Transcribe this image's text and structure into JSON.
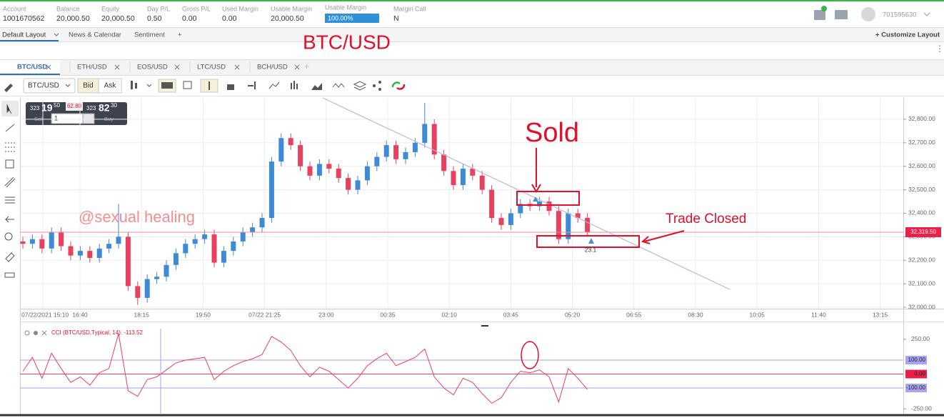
{
  "account_bar": {
    "fields": [
      {
        "label": "Account",
        "value": "1001670562"
      },
      {
        "label": "Balance",
        "value": "20,000.50"
      },
      {
        "label": "Equity",
        "value": "20,000.50"
      },
      {
        "label": "Day P/L",
        "value": "0.50"
      },
      {
        "label": "Gross P/L",
        "value": "0.00"
      },
      {
        "label": "Used Margin",
        "value": "0.00"
      },
      {
        "label": "Usable Margin",
        "value": "20,000.50"
      }
    ],
    "margin_bar": {
      "label": "Usable Margin",
      "value": "100.00%"
    },
    "margin_call": {
      "label": "Margin Call",
      "value": "N"
    },
    "user_id": "701595630"
  },
  "layout_tabs": {
    "tabs": [
      "Default Layout",
      "News & Calendar",
      "Sentiment",
      "+"
    ],
    "customize": "+ Customize Layout"
  },
  "overlay_title": "BTC/USD",
  "symbol_tabs": [
    "BTC/USD",
    "ETH/USD",
    "EOS/USD",
    "LTC/USD",
    "BCH/USD"
  ],
  "toolbar": {
    "symbol": "BTC/USD",
    "bid": "Bid",
    "ask": "Ask"
  },
  "order_ticket": {
    "sell_big": "323",
    "sell_pips": "19",
    "sell_frac": "50",
    "spread": "62.80",
    "buy_big": "323",
    "buy_pips": "82",
    "buy_frac": "30",
    "amount": "1",
    "sell": "Sell",
    "buy": "Buy"
  },
  "chart_data": [
    {
      "type": "candlestick",
      "xtick_labels": [
        "07/22/2021 15:10",
        "16:40",
        "18:15",
        "19:50",
        "07/22 21:25",
        "23:00",
        "00:35",
        "02:10",
        "03:45",
        "05:20",
        "06:55",
        "08:30",
        "10:05",
        "11:40",
        "13:15"
      ],
      "open": [
        32280,
        32270,
        32290,
        32250,
        32320,
        32260,
        32220,
        32240,
        32210,
        32250,
        32270,
        32300,
        32090,
        32040,
        32120,
        32130,
        32180,
        32230,
        32270,
        32290,
        32310,
        32190,
        32240,
        32280,
        32320,
        32340,
        32380,
        32620,
        32720,
        32690,
        32600,
        32560,
        32610,
        32590,
        32550,
        32500,
        32540,
        32600,
        32640,
        32690,
        32630,
        32660,
        32700,
        32780,
        32650,
        32580,
        32520,
        32590,
        32560,
        32500,
        32380,
        32350,
        32400,
        32440,
        32430,
        32450,
        32410,
        32290,
        32400,
        32380
      ],
      "high": [
        32300,
        32310,
        32310,
        32340,
        32340,
        32280,
        32260,
        32260,
        32270,
        32290,
        32440,
        32320,
        32110,
        32140,
        32150,
        32200,
        32250,
        32290,
        32310,
        32330,
        32330,
        32260,
        32300,
        32340,
        32360,
        32400,
        32640,
        32740,
        32740,
        32710,
        32620,
        32630,
        32630,
        32610,
        32570,
        32560,
        32620,
        32660,
        32710,
        32710,
        32680,
        32720,
        32870,
        32800,
        32670,
        32600,
        32610,
        32610,
        32580,
        32520,
        32400,
        32420,
        32460,
        32460,
        32470,
        32470,
        32430,
        32420,
        32420,
        32400
      ],
      "low": [
        32250,
        32250,
        32230,
        32230,
        32240,
        32200,
        32200,
        32190,
        32190,
        32230,
        32250,
        32070,
        32010,
        32020,
        32100,
        32110,
        32160,
        32210,
        32250,
        32270,
        32170,
        32170,
        32220,
        32260,
        32300,
        32320,
        32360,
        32600,
        32670,
        32580,
        32540,
        32540,
        32570,
        32530,
        32480,
        32480,
        32520,
        32580,
        32620,
        32610,
        32610,
        32640,
        32680,
        32630,
        32560,
        32500,
        32500,
        32540,
        32480,
        32360,
        32330,
        32330,
        32380,
        32410,
        32410,
        32390,
        32270,
        32270,
        32360,
        32300
      ],
      "close": [
        32270,
        32290,
        32250,
        32320,
        32260,
        32220,
        32240,
        32210,
        32250,
        32270,
        32300,
        32090,
        32040,
        32120,
        32130,
        32180,
        32230,
        32270,
        32290,
        32310,
        32190,
        32240,
        32280,
        32320,
        32340,
        32380,
        32620,
        32720,
        32690,
        32600,
        32560,
        32610,
        32590,
        32550,
        32500,
        32540,
        32600,
        32640,
        32690,
        32630,
        32660,
        32700,
        32780,
        32650,
        32580,
        32520,
        32590,
        32560,
        32500,
        32380,
        32350,
        32400,
        32440,
        32430,
        32450,
        32410,
        32290,
        32400,
        32380,
        32320
      ],
      "up_color": "#3d8ad6",
      "down_color": "#e8405f",
      "ylim": [
        31994,
        32891
      ],
      "yticks": [
        {
          "value": 32000,
          "label": "32,000.00"
        },
        {
          "value": 32100,
          "label": "32,100.00"
        },
        {
          "value": 32200,
          "label": "32,200.00"
        },
        {
          "value": 32300,
          "label": "32,300.00"
        },
        {
          "value": 32400,
          "label": "32,400.00"
        },
        {
          "value": 32500,
          "label": "32,500.00"
        },
        {
          "value": 32600,
          "label": "32,600.00"
        },
        {
          "value": 32700,
          "label": "32,700.00"
        },
        {
          "value": 32800,
          "label": "32,800.00"
        }
      ],
      "grid": true,
      "current_price": {
        "value": 32319.5,
        "label": "32,319.50"
      },
      "annotations": [
        "Sold",
        "Trade Closed",
        "@sexual healing",
        "23.1"
      ]
    },
    {
      "type": "line",
      "title": "CCI (BTC/USD,Typical, 14): -113.52",
      "values": [
        20,
        120,
        -30,
        150,
        40,
        -60,
        -20,
        -80,
        10,
        40,
        290,
        -120,
        -160,
        -40,
        -20,
        30,
        80,
        100,
        110,
        120,
        -40,
        20,
        60,
        90,
        110,
        140,
        270,
        230,
        170,
        60,
        -20,
        50,
        20,
        -40,
        -100,
        -30,
        60,
        110,
        150,
        60,
        90,
        120,
        180,
        -20,
        -100,
        -150,
        -30,
        -60,
        -140,
        -210,
        -170,
        -60,
        20,
        10,
        30,
        -20,
        -200,
        40,
        -30,
        -110
      ],
      "color": "#e8405f",
      "ylim": [
        -290,
        326
      ],
      "yticks": [
        {
          "value": 250,
          "label": "250.00"
        },
        {
          "value": 100,
          "label": "100.00"
        },
        {
          "value": 0,
          "label": "0.00"
        },
        {
          "value": -100,
          "label": "-100.00"
        },
        {
          "value": -250,
          "label": "-250.00"
        }
      ]
    }
  ]
}
